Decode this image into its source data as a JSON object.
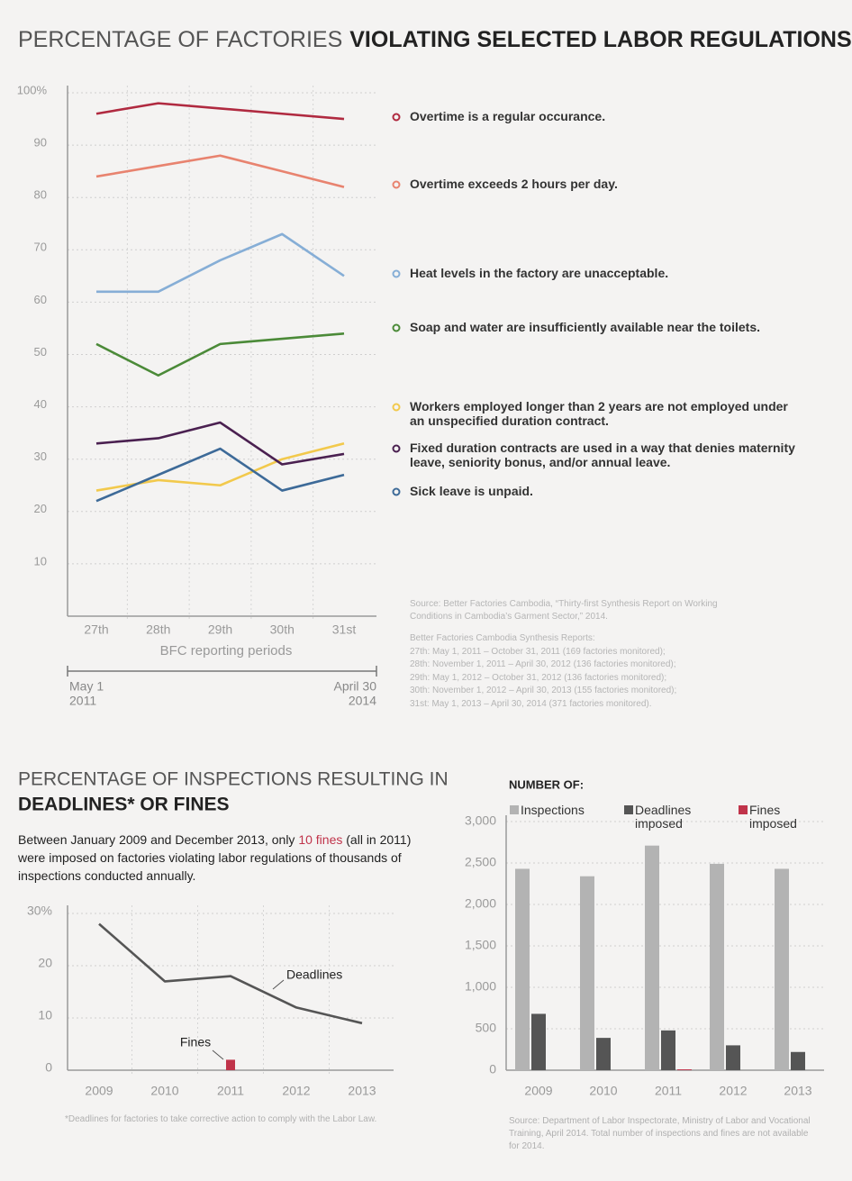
{
  "chart_data": [
    {
      "type": "line",
      "title": [
        "PERCENTAGE OF FACTORIES",
        "VIOLATING SELECTED LABOR REGULATIONS"
      ],
      "categories": [
        "27th",
        "28th",
        "29th",
        "30th",
        "31st"
      ],
      "x_label": "BFC reporting periods",
      "ylim": [
        0,
        100
      ],
      "yticks": [
        10,
        20,
        30,
        40,
        50,
        60,
        70,
        80,
        90,
        {
          "value": 100,
          "label": "100%"
        }
      ],
      "grid": true,
      "series": [
        {
          "name": "Overtime is a regular occurance.",
          "color": "#b02a40",
          "values": [
            96,
            98,
            97,
            96,
            95
          ]
        },
        {
          "name": "Overtime exceeds 2 hours per day.",
          "color": "#e8836f",
          "values": [
            84,
            86,
            88,
            85,
            82
          ]
        },
        {
          "name": "Heat levels in the factory are unacceptable.",
          "color": "#86aed6",
          "values": [
            62,
            62,
            68,
            73,
            65
          ]
        },
        {
          "name": "Soap and water are insufficiently available near the toilets.",
          "color": "#4b8a38",
          "values": [
            52,
            46,
            52,
            53,
            54
          ]
        },
        {
          "name": "Workers employed longer than 2 years are not employed under an unspecified duration contract.",
          "color": "#f2c94c",
          "values": [
            24,
            26,
            25,
            30,
            33
          ]
        },
        {
          "name": "Fixed duration contracts are used in a way that denies maternity leave, seniority bonus, and/or annual leave.",
          "color": "#4a2050",
          "values": [
            33,
            34,
            37,
            29,
            31
          ]
        },
        {
          "name": "Sick leave is unpaid.",
          "color": "#3d6a98",
          "values": [
            22,
            27,
            32,
            24,
            27
          ]
        }
      ],
      "timeline": {
        "start": [
          "May 1",
          "2011"
        ],
        "end": [
          "April 30",
          "2014"
        ]
      },
      "source": "Source: Better Factories Cambodia, “Thirty-first Synthesis Report on Working Conditions in Cambodia’s Garment Sector,” 2014.",
      "reports_title": "Better Factories Cambodia Synthesis Reports:",
      "reports": [
        "27th: May 1, 2011 – October 31, 2011 (169 factories monitored);",
        "28th: November 1, 2011 – April 30, 2012 (136 factories monitored);",
        "29th: May 1, 2012 – October 31, 2012 (136 factories monitored);",
        "30th: November 1, 2012 – April 30, 2013 (155 factories monitored);",
        "31st: May 1, 2013 – April 30, 2014 (371 factories monitored)."
      ]
    },
    {
      "type": "line",
      "title": [
        "PERCENTAGE OF INSPECTIONS RESULTING IN",
        "DEADLINES* OR FINES"
      ],
      "description": [
        "Between January 2009 and December 2013, only ",
        "10 fines",
        " (all in 2011) were imposed on factories violating labor regulations of thousands of inspections conducted annually."
      ],
      "categories": [
        "2009",
        "2010",
        "2011",
        "2012",
        "2013"
      ],
      "ylim": [
        0,
        30
      ],
      "yticks": [
        0,
        10,
        20,
        {
          "value": 30,
          "label": "30%"
        }
      ],
      "grid": true,
      "series": [
        {
          "name": "Deadlines",
          "color": "#555555",
          "values": [
            28,
            17,
            18,
            12,
            9
          ]
        },
        {
          "name": "Fines",
          "color": "#c0334a",
          "type": "bar",
          "values": [
            null,
            null,
            2,
            null,
            null
          ]
        }
      ],
      "footnote": "*Deadlines for factories to take corrective action to comply with the Labor Law."
    },
    {
      "type": "bar",
      "title": "NUMBER OF:",
      "categories": [
        "2009",
        "2010",
        "2011",
        "2012",
        "2013"
      ],
      "ylim": [
        0,
        3000
      ],
      "yticks": [
        0,
        500,
        {
          "value": 1000,
          "label": "1,000"
        },
        {
          "value": 1500,
          "label": "1,500"
        },
        {
          "value": 2000,
          "label": "2,000"
        },
        {
          "value": 2500,
          "label": "2,500"
        },
        {
          "value": 3000,
          "label": "3,000"
        }
      ],
      "grid": true,
      "series": [
        {
          "name": "Inspections",
          "color": "#b3b3b3",
          "values": [
            2430,
            2340,
            2710,
            2490,
            2430
          ]
        },
        {
          "name": "Deadlines imposed",
          "color": "#555555",
          "values": [
            680,
            390,
            480,
            300,
            220
          ]
        },
        {
          "name": "Fines imposed",
          "color": "#c0334a",
          "values": [
            null,
            null,
            10,
            null,
            null
          ]
        }
      ],
      "source": "Source: Department of Labor Inspectorate, Ministry of Labor and Vocational Training, April 2014. Total number of inspections and fines are not available for 2014."
    }
  ]
}
